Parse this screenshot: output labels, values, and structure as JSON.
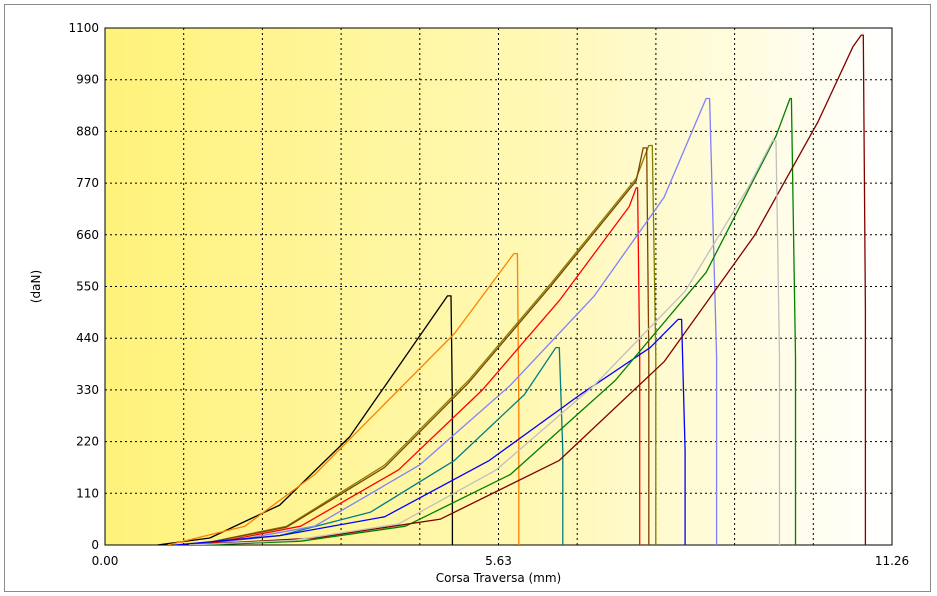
{
  "chart_data": {
    "type": "line",
    "title": "",
    "xlabel": "Corsa Traversa (mm)",
    "ylabel": "(daN)",
    "xlim": [
      0,
      11.26
    ],
    "ylim": [
      0,
      1100
    ],
    "x_ticks": [
      0,
      5.63,
      11.26
    ],
    "x_tick_labels": [
      "0.00",
      "5.63",
      "11.26"
    ],
    "y_ticks": [
      0,
      110,
      220,
      330,
      440,
      550,
      660,
      770,
      880,
      990,
      1100
    ],
    "y_tick_labels": [
      "0",
      "110",
      "220",
      "330",
      "440",
      "550",
      "660",
      "770",
      "880",
      "990",
      "1100"
    ],
    "grid": true,
    "background_gradient": [
      "#fff27a",
      "#ffffff"
    ],
    "series": [
      {
        "color": "#000000",
        "x": [
          0.75,
          1.5,
          2.5,
          3.5,
          4.2,
          4.9,
          4.95,
          4.97,
          4.97
        ],
        "y": [
          0,
          15,
          85,
          230,
          380,
          530,
          530,
          300,
          0
        ]
      },
      {
        "color": "#ff8000",
        "x": [
          0.9,
          2.0,
          3.0,
          4.0,
          5.0,
          5.85,
          5.9,
          5.92,
          5.92
        ],
        "y": [
          0,
          40,
          150,
          300,
          450,
          620,
          620,
          300,
          0
        ]
      },
      {
        "color": "#008080",
        "x": [
          1.2,
          2.5,
          3.8,
          5.0,
          6.0,
          6.45,
          6.5,
          6.55,
          6.55
        ],
        "y": [
          0,
          20,
          70,
          180,
          320,
          420,
          420,
          200,
          0
        ]
      },
      {
        "color": "#808000",
        "x": [
          1.3,
          2.6,
          4.0,
          5.2,
          6.4,
          7.6,
          7.78,
          7.83,
          7.88,
          7.88
        ],
        "y": [
          0,
          40,
          170,
          350,
          560,
          780,
          850,
          850,
          400,
          0
        ]
      },
      {
        "color": "#804000",
        "x": [
          1.3,
          2.6,
          4.0,
          5.2,
          6.4,
          7.6,
          7.7,
          7.75,
          7.78,
          7.78
        ],
        "y": [
          0,
          38,
          165,
          345,
          555,
          775,
          845,
          845,
          400,
          0
        ]
      },
      {
        "color": "#ff0000",
        "x": [
          1.4,
          2.8,
          4.2,
          5.4,
          6.5,
          7.5,
          7.6,
          7.62,
          7.65,
          7.65
        ],
        "y": [
          0,
          40,
          160,
          330,
          520,
          720,
          760,
          760,
          400,
          0
        ]
      },
      {
        "color": "#8080ff",
        "x": [
          1.5,
          3.0,
          4.5,
          5.8,
          7.0,
          8.0,
          8.6,
          8.65,
          8.75,
          8.75
        ],
        "y": [
          0,
          40,
          170,
          340,
          530,
          740,
          950,
          950,
          400,
          0
        ]
      },
      {
        "color": "#0000ff",
        "x": [
          1.0,
          2.5,
          4.0,
          5.5,
          6.8,
          7.8,
          8.2,
          8.25,
          8.3,
          8.3
        ],
        "y": [
          0,
          20,
          60,
          180,
          320,
          420,
          480,
          480,
          200,
          0
        ]
      },
      {
        "color": "#008000",
        "x": [
          1.4,
          2.8,
          4.3,
          5.8,
          7.3,
          8.6,
          9.6,
          9.8,
          9.82,
          9.88,
          9.88
        ],
        "y": [
          0,
          8,
          40,
          150,
          350,
          580,
          870,
          950,
          950,
          400,
          0
        ]
      },
      {
        "color": "#800000",
        "x": [
          1.2,
          3.0,
          4.8,
          6.5,
          8.0,
          9.3,
          10.2,
          10.7,
          10.82,
          10.85,
          10.88,
          10.88
        ],
        "y": [
          0,
          15,
          55,
          180,
          390,
          660,
          900,
          1060,
          1085,
          1085,
          500,
          0
        ]
      },
      {
        "color": "#c0c0c0",
        "x": [
          1.2,
          2.7,
          4.2,
          5.6,
          7.0,
          8.3,
          9.2,
          9.55,
          9.6,
          9.65,
          9.65
        ],
        "y": [
          0,
          10,
          45,
          160,
          340,
          540,
          760,
          860,
          860,
          400,
          0
        ]
      }
    ]
  }
}
